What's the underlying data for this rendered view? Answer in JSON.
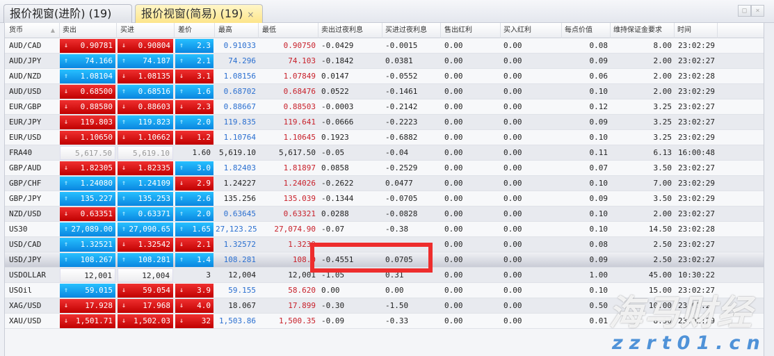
{
  "tabs": [
    {
      "label": "报价视窗(进阶) (19)",
      "active": false
    },
    {
      "label": "报价视窗(简易) (19)",
      "active": true,
      "close": "×"
    }
  ],
  "window_buttons": {
    "restore": "□",
    "close": "×"
  },
  "columns": [
    "货币",
    "卖出",
    "买进",
    "差价",
    "最高",
    "最低",
    "卖出过夜利息",
    "买进过夜利息",
    "售出红利",
    "买入红利",
    "每点价值",
    "维持保证金要求",
    "时间"
  ],
  "sort_indicator": "▲",
  "colors": {
    "down": "#d40a0a",
    "up": "#1aa3f0",
    "high_up": "#2a6fd0",
    "low_down": "#c8202a",
    "highlight_box": "#ee2d2d"
  },
  "selected_row": "USD/JPY",
  "rows": [
    {
      "sym": "AUD/CAD",
      "sell": "0.90781",
      "sd": "d",
      "buy": "0.90804",
      "bd": "d",
      "spread": "2.3",
      "pd": "u",
      "high": "0.91033",
      "hc": "blue",
      "low": "0.90750",
      "lc": "red",
      "sswap": "-0.0429",
      "bswap": "-0.0015",
      "sdiv": "0.00",
      "bdiv": "0.00",
      "pv": "0.08",
      "margin": "8.00",
      "time": "23:02:29"
    },
    {
      "sym": "AUD/JPY",
      "sell": "74.166",
      "sd": "u",
      "buy": "74.187",
      "bd": "u",
      "spread": "2.1",
      "pd": "u",
      "high": "74.296",
      "hc": "blue",
      "low": "74.103",
      "lc": "red",
      "sswap": "-0.1842",
      "bswap": "0.0381",
      "sdiv": "0.00",
      "bdiv": "0.00",
      "pv": "0.09",
      "margin": "2.00",
      "time": "23:02:27"
    },
    {
      "sym": "AUD/NZD",
      "sell": "1.08104",
      "sd": "u",
      "buy": "1.08135",
      "bd": "d",
      "spread": "3.1",
      "pd": "d",
      "high": "1.08156",
      "hc": "blue",
      "low": "1.07849",
      "lc": "red",
      "sswap": "0.0147",
      "bswap": "-0.0552",
      "sdiv": "0.00",
      "bdiv": "0.00",
      "pv": "0.06",
      "margin": "2.00",
      "time": "23:02:28"
    },
    {
      "sym": "AUD/USD",
      "sell": "0.68500",
      "sd": "d",
      "buy": "0.68516",
      "bd": "u",
      "spread": "1.6",
      "pd": "u",
      "high": "0.68702",
      "hc": "blue",
      "low": "0.68476",
      "lc": "red",
      "sswap": "0.0522",
      "bswap": "-0.1461",
      "sdiv": "0.00",
      "bdiv": "0.00",
      "pv": "0.10",
      "margin": "2.00",
      "time": "23:02:29"
    },
    {
      "sym": "EUR/GBP",
      "sell": "0.88580",
      "sd": "d",
      "buy": "0.88603",
      "bd": "d",
      "spread": "2.3",
      "pd": "d",
      "high": "0.88667",
      "hc": "blue",
      "low": "0.88503",
      "lc": "red",
      "sswap": "-0.0003",
      "bswap": "-0.2142",
      "sdiv": "0.00",
      "bdiv": "0.00",
      "pv": "0.12",
      "margin": "3.25",
      "time": "23:02:27"
    },
    {
      "sym": "EUR/JPY",
      "sell": "119.803",
      "sd": "d",
      "buy": "119.823",
      "bd": "u",
      "spread": "2.0",
      "pd": "u",
      "high": "119.835",
      "hc": "blue",
      "low": "119.641",
      "lc": "red",
      "sswap": "-0.0666",
      "bswap": "-0.2223",
      "sdiv": "0.00",
      "bdiv": "0.00",
      "pv": "0.09",
      "margin": "3.25",
      "time": "23:02:27"
    },
    {
      "sym": "EUR/USD",
      "sell": "1.10650",
      "sd": "d",
      "buy": "1.10662",
      "bd": "d",
      "spread": "1.2",
      "pd": "d",
      "high": "1.10764",
      "hc": "blue",
      "low": "1.10645",
      "lc": "red",
      "sswap": "0.1923",
      "bswap": "-0.6882",
      "sdiv": "0.00",
      "bdiv": "0.00",
      "pv": "0.10",
      "margin": "3.25",
      "time": "23:02:29"
    },
    {
      "sym": "FRA40",
      "sell": "5,617.50",
      "sd": "n",
      "buy": "5,619.10",
      "bd": "n",
      "spread": "1.60",
      "pd": "p",
      "high": "5,619.10",
      "hc": "black",
      "low": "5,617.50",
      "lc": "black",
      "sswap": "-0.05",
      "bswap": "-0.04",
      "sdiv": "0.00",
      "bdiv": "0.00",
      "pv": "0.11",
      "margin": "6.13",
      "time": "16:00:48"
    },
    {
      "sym": "GBP/AUD",
      "sell": "1.82305",
      "sd": "d",
      "buy": "1.82335",
      "bd": "d",
      "spread": "3.0",
      "pd": "u",
      "high": "1.82403",
      "hc": "blue",
      "low": "1.81897",
      "lc": "red",
      "sswap": "0.0858",
      "bswap": "-0.2529",
      "sdiv": "0.00",
      "bdiv": "0.00",
      "pv": "0.07",
      "margin": "3.50",
      "time": "23:02:27"
    },
    {
      "sym": "GBP/CHF",
      "sell": "1.24080",
      "sd": "u",
      "buy": "1.24109",
      "bd": "u",
      "spread": "2.9",
      "pd": "d",
      "high": "1.24227",
      "hc": "black",
      "low": "1.24026",
      "lc": "red",
      "sswap": "-0.2622",
      "bswap": "0.0477",
      "sdiv": "0.00",
      "bdiv": "0.00",
      "pv": "0.10",
      "margin": "7.00",
      "time": "23:02:29"
    },
    {
      "sym": "GBP/JPY",
      "sell": "135.227",
      "sd": "u",
      "buy": "135.253",
      "bd": "u",
      "spread": "2.6",
      "pd": "u",
      "high": "135.256",
      "hc": "black",
      "low": "135.039",
      "lc": "red",
      "sswap": "-0.1344",
      "bswap": "-0.0705",
      "sdiv": "0.00",
      "bdiv": "0.00",
      "pv": "0.09",
      "margin": "3.50",
      "time": "23:02:29"
    },
    {
      "sym": "NZD/USD",
      "sell": "0.63351",
      "sd": "d",
      "buy": "0.63371",
      "bd": "u",
      "spread": "2.0",
      "pd": "u",
      "high": "0.63645",
      "hc": "blue",
      "low": "0.63321",
      "lc": "red",
      "sswap": "0.0288",
      "bswap": "-0.0828",
      "sdiv": "0.00",
      "bdiv": "0.00",
      "pv": "0.10",
      "margin": "2.00",
      "time": "23:02:27"
    },
    {
      "sym": "US30",
      "sell": "27,089.00",
      "sd": "u",
      "buy": "27,090.65",
      "bd": "u",
      "spread": "1.65",
      "pd": "u",
      "high": "27,123.25",
      "hc": "blue",
      "low": "27,074.90",
      "lc": "red",
      "sswap": "-0.07",
      "bswap": "-0.38",
      "sdiv": "0.00",
      "bdiv": "0.00",
      "pv": "0.10",
      "margin": "14.50",
      "time": "23:02:28"
    },
    {
      "sym": "USD/CAD",
      "sell": "1.32521",
      "sd": "u",
      "buy": "1.32542",
      "bd": "d",
      "spread": "2.1",
      "pd": "d",
      "high": "1.32572",
      "hc": "blue",
      "low": "1.3239",
      "lc": "red",
      "sswap": "",
      "bswap": "",
      "sdiv": "0.00",
      "bdiv": "0.00",
      "pv": "0.08",
      "margin": "2.50",
      "time": "23:02:27"
    },
    {
      "sym": "USD/JPY",
      "sell": "108.267",
      "sd": "u",
      "buy": "108.281",
      "bd": "u",
      "spread": "1.4",
      "pd": "u",
      "high": "108.281",
      "hc": "blue",
      "low": "108.0",
      "lc": "red",
      "sswap": "-0.4551",
      "bswap": "0.0705",
      "sdiv": "0.00",
      "bdiv": "0.00",
      "pv": "0.09",
      "margin": "2.50",
      "time": "23:02:27"
    },
    {
      "sym": "USDOLLAR",
      "sell": "12,001",
      "sd": "n",
      "buy": "12,004",
      "bd": "n",
      "spread": "3",
      "pd": "p",
      "high": "12,004",
      "hc": "black",
      "low": "12,001",
      "lc": "black",
      "sswap": "-1.05",
      "bswap": "0.31",
      "sdiv": "0.00",
      "bdiv": "0.00",
      "pv": "1.00",
      "margin": "45.00",
      "time": "10:30:22"
    },
    {
      "sym": "USOil",
      "sell": "59.015",
      "sd": "u",
      "buy": "59.054",
      "bd": "d",
      "spread": "3.9",
      "pd": "d",
      "high": "59.155",
      "hc": "blue",
      "low": "58.620",
      "lc": "red",
      "sswap": "0.00",
      "bswap": "0.00",
      "sdiv": "0.00",
      "bdiv": "0.00",
      "pv": "0.10",
      "margin": "15.00",
      "time": "23:02:27"
    },
    {
      "sym": "XAG/USD",
      "sell": "17.928",
      "sd": "d",
      "buy": "17.968",
      "bd": "d",
      "spread": "4.0",
      "pd": "d",
      "high": "18.067",
      "hc": "black",
      "low": "17.899",
      "lc": "red",
      "sswap": "-0.30",
      "bswap": "-1.50",
      "sdiv": "0.00",
      "bdiv": "0.00",
      "pv": "0.50",
      "margin": "10.00",
      "time": "23:02:27"
    },
    {
      "sym": "XAU/USD",
      "sell": "1,501.71",
      "sd": "d",
      "buy": "1,502.03",
      "bd": "d",
      "spread": "32",
      "pd": "d",
      "high": "1,503.86",
      "hc": "blue",
      "low": "1,500.35",
      "lc": "red",
      "sswap": "-0.09",
      "bswap": "-0.33",
      "sdiv": "0.00",
      "bdiv": "0.00",
      "pv": "0.01",
      "margin": "8.50",
      "time": "23:02:29"
    }
  ],
  "watermark": {
    "cn": "海马财经",
    "url": "zzrt01.cn"
  }
}
